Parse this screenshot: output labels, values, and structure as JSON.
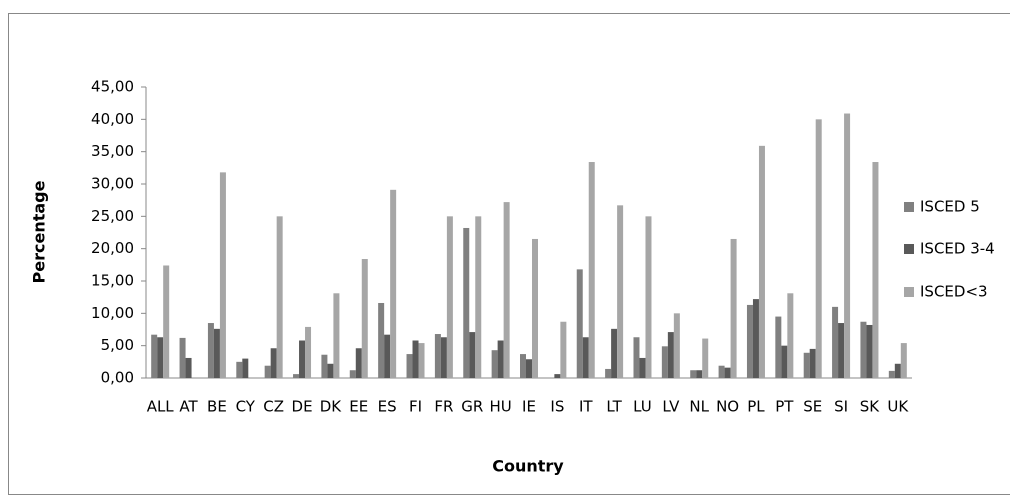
{
  "chart_data": {
    "type": "bar",
    "x_label": "Country",
    "y_label": "Percentage",
    "categories": [
      "ALL",
      "AT",
      "BE",
      "CY",
      "CZ",
      "DE",
      "DK",
      "EE",
      "ES",
      "FI",
      "FR",
      "GR",
      "HU",
      "IE",
      "IS",
      "IT",
      "LT",
      "LU",
      "LV",
      "NL",
      "NO",
      "PL",
      "PT",
      "SE",
      "SI",
      "SK",
      "UK"
    ],
    "series": [
      {
        "name": "ISCED 5",
        "color": "#808080",
        "values": [
          6.7,
          6.2,
          8.5,
          2.5,
          1.9,
          0.6,
          3.6,
          1.2,
          11.6,
          3.7,
          6.8,
          23.2,
          4.3,
          3.7,
          0,
          16.8,
          1.4,
          6.3,
          4.9,
          1.2,
          1.9,
          11.3,
          9.5,
          3.9,
          11.0,
          8.7,
          1.1
        ]
      },
      {
        "name": "ISCED 3-4",
        "color": "#595959",
        "values": [
          6.3,
          3.1,
          7.6,
          3.0,
          4.6,
          5.8,
          2.2,
          4.6,
          6.7,
          5.8,
          6.3,
          7.1,
          5.8,
          2.9,
          0.6,
          6.3,
          7.6,
          3.1,
          7.1,
          1.2,
          1.6,
          12.2,
          5.0,
          4.5,
          8.5,
          8.2,
          2.2
        ]
      },
      {
        "name": "ISCED<3",
        "color": "#a6a6a6",
        "values": [
          17.4,
          0,
          31.8,
          0,
          25.0,
          7.9,
          13.1,
          18.4,
          29.1,
          5.4,
          25.0,
          25.0,
          27.2,
          21.5,
          8.7,
          33.4,
          26.7,
          25.0,
          10.0,
          6.1,
          21.5,
          35.9,
          13.1,
          40.0,
          40.9,
          33.4,
          5.4
        ]
      }
    ],
    "ylim": [
      0,
      45
    ],
    "yticks": [
      {
        "value": 0,
        "label": "0,00"
      },
      {
        "value": 5,
        "label": "5,00"
      },
      {
        "value": 10,
        "label": "10,00"
      },
      {
        "value": 15,
        "label": "15,00"
      },
      {
        "value": 20,
        "label": "20,00"
      },
      {
        "value": 25,
        "label": "25,00"
      },
      {
        "value": 30,
        "label": "30,00"
      },
      {
        "value": 35,
        "label": "35,00"
      },
      {
        "value": 40,
        "label": "40,00"
      },
      {
        "value": 45,
        "label": "45,00"
      }
    ],
    "legend": "right"
  }
}
